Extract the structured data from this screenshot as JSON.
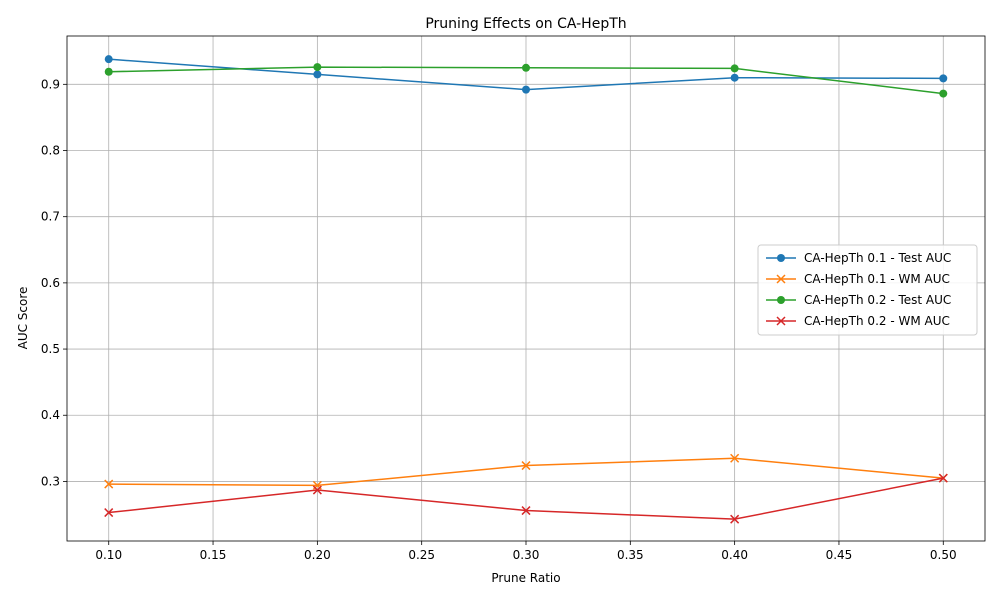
{
  "chart_data": {
    "type": "line",
    "title": "Pruning Effects on CA-HepTh",
    "xlabel": "Prune Ratio",
    "ylabel": "AUC Score",
    "xlim": [
      0.08,
      0.52
    ],
    "ylim": [
      0.21,
      0.973
    ],
    "x": [
      0.1,
      0.2,
      0.3,
      0.4,
      0.5
    ],
    "xticks": [
      0.1,
      0.15,
      0.2,
      0.25,
      0.3,
      0.35,
      0.4,
      0.45,
      0.5
    ],
    "yticks": [
      0.3,
      0.4,
      0.5,
      0.6,
      0.7,
      0.8,
      0.9
    ],
    "grid": true,
    "legend_position": "center-right",
    "series": [
      {
        "name": "CA-HepTh 0.1 - Test AUC",
        "values": [
          0.938,
          0.915,
          0.892,
          0.91,
          0.909
        ],
        "color": "#1f77b4",
        "marker": "circle"
      },
      {
        "name": "CA-HepTh 0.1 - WM AUC",
        "values": [
          0.296,
          0.294,
          0.324,
          0.335,
          0.305
        ],
        "color": "#ff7f0e",
        "marker": "x"
      },
      {
        "name": "CA-HepTh 0.2 - Test AUC",
        "values": [
          0.919,
          0.926,
          0.925,
          0.924,
          0.886
        ],
        "color": "#2ca02c",
        "marker": "circle"
      },
      {
        "name": "CA-HepTh 0.2 - WM AUC",
        "values": [
          0.253,
          0.287,
          0.256,
          0.243,
          0.305
        ],
        "color": "#d62728",
        "marker": "x"
      }
    ]
  }
}
